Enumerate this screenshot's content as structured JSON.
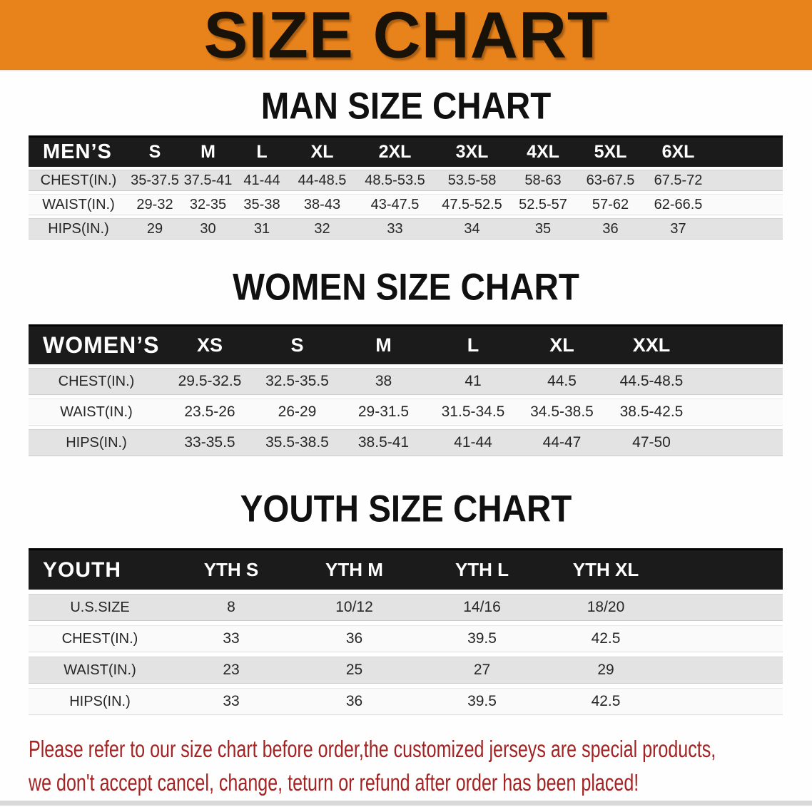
{
  "banner": {
    "title": "SIZE CHART"
  },
  "colors": {
    "banner_bg": "#E8831C",
    "header_bar_bg": "#1B1B1B",
    "row_shade": "#E3E3E3",
    "row_plain": "#FAFAFA",
    "footer_red": "#A32323"
  },
  "sections": [
    {
      "heading": "MAN SIZE CHART",
      "table": {
        "header": {
          "label": "MEN’S",
          "sizes": [
            "S",
            "M",
            "L",
            "XL",
            "2XL",
            "3XL",
            "4XL",
            "5XL",
            "6XL"
          ]
        },
        "rows": [
          {
            "label": "CHEST(IN.)",
            "values": [
              "35-37.5",
              "37.5-41",
              "41-44",
              "44-48.5",
              "48.5-53.5",
              "53.5-58",
              "58-63",
              "63-67.5",
              "67.5-72"
            ]
          },
          {
            "label": "WAIST(IN.)",
            "values": [
              "29-32",
              "32-35",
              "35-38",
              "38-43",
              "43-47.5",
              "47.5-52.5",
              "52.5-57",
              "57-62",
              "62-66.5"
            ]
          },
          {
            "label": "HIPS(IN.)",
            "values": [
              "29",
              "30",
              "31",
              "32",
              "33",
              "34",
              "35",
              "36",
              "37"
            ]
          }
        ]
      }
    },
    {
      "heading": "WOMEN SIZE CHART",
      "table": {
        "header": {
          "label": "WOMEN’S",
          "sizes": [
            "XS",
            "S",
            "M",
            "L",
            "XL",
            "XXL"
          ]
        },
        "rows": [
          {
            "label": "CHEST(IN.)",
            "values": [
              "29.5-32.5",
              "32.5-35.5",
              "38",
              "41",
              "44.5",
              "44.5-48.5"
            ]
          },
          {
            "label": "WAIST(IN.)",
            "values": [
              "23.5-26",
              "26-29",
              "29-31.5",
              "31.5-34.5",
              "34.5-38.5",
              "38.5-42.5"
            ]
          },
          {
            "label": "HIPS(IN.)",
            "values": [
              "33-35.5",
              "35.5-38.5",
              "38.5-41",
              "41-44",
              "44-47",
              "47-50"
            ]
          }
        ]
      }
    },
    {
      "heading": "YOUTH SIZE CHART",
      "table": {
        "header": {
          "label": "YOUTH",
          "sizes": [
            "YTH S",
            "YTH M",
            "YTH L",
            "YTH XL"
          ]
        },
        "rows": [
          {
            "label": "U.S.SIZE",
            "values": [
              "8",
              "10/12",
              "14/16",
              "18/20"
            ]
          },
          {
            "label": "CHEST(IN.)",
            "values": [
              "33",
              "36",
              "39.5",
              "42.5"
            ]
          },
          {
            "label": "WAIST(IN.)",
            "values": [
              "23",
              "25",
              "27",
              "29"
            ]
          },
          {
            "label": "HIPS(IN.)",
            "values": [
              "33",
              "36",
              "39.5",
              "42.5"
            ]
          }
        ]
      }
    }
  ],
  "footer": {
    "line1": "Please refer to our size chart before order,the customized jerseys are special products,",
    "line2": "we don't accept cancel, change, teturn or refund after order has been placed!"
  }
}
